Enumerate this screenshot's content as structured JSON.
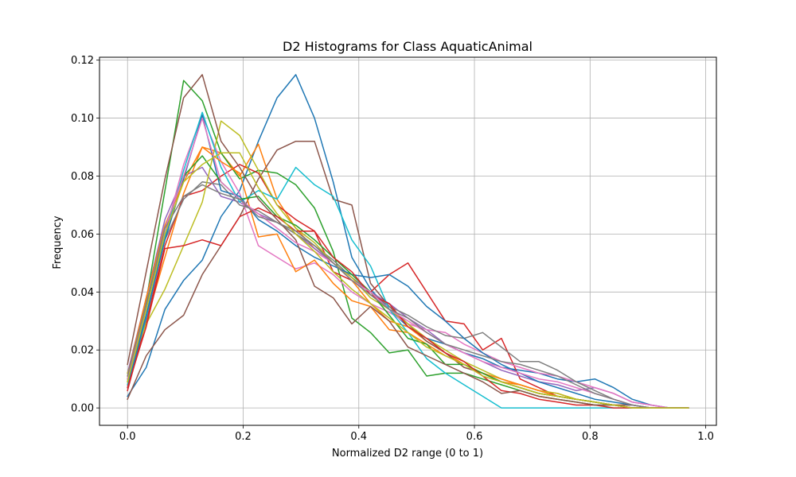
{
  "chart_data": {
    "type": "line",
    "title": "D2 Histograms for Class AquaticAnimal",
    "xlabel": "Normalized D2 range (0 to 1)",
    "ylabel": "Frequency",
    "xlim": [
      -0.0485,
      1.0185
    ],
    "ylim": [
      -0.006,
      0.121
    ],
    "xticks": [
      0.0,
      0.2,
      0.4,
      0.6,
      0.8,
      1.0
    ],
    "xtick_labels": [
      "0.0",
      "0.2",
      "0.4",
      "0.6",
      "0.8",
      "1.0"
    ],
    "yticks": [
      0.0,
      0.02,
      0.04,
      0.06,
      0.08,
      0.1,
      0.12
    ],
    "ytick_labels": [
      "0.00",
      "0.02",
      "0.04",
      "0.06",
      "0.08",
      "0.10",
      "0.12"
    ],
    "grid": true,
    "x": [
      0.0,
      0.0323,
      0.0647,
      0.097,
      0.1293,
      0.1617,
      0.194,
      0.2263,
      0.2587,
      0.291,
      0.3233,
      0.3557,
      0.388,
      0.4203,
      0.4527,
      0.485,
      0.5173,
      0.5497,
      0.582,
      0.6143,
      0.6467,
      0.679,
      0.7113,
      0.7437,
      0.776,
      0.8083,
      0.8407,
      0.873,
      0.9053,
      0.9377,
      0.97
    ],
    "series": [
      {
        "color": "#1f77b4",
        "values": [
          0.004,
          0.014,
          0.034,
          0.044,
          0.051,
          0.066,
          0.075,
          0.092,
          0.107,
          0.115,
          0.1,
          0.078,
          0.052,
          0.041,
          0.034,
          0.028,
          0.024,
          0.022,
          0.019,
          0.017,
          0.014,
          0.013,
          0.012,
          0.01,
          0.009,
          0.01,
          0.007,
          0.003,
          0.001,
          0.0,
          0.0
        ]
      },
      {
        "color": "#ff7f0e",
        "values": [
          0.008,
          0.03,
          0.052,
          0.074,
          0.09,
          0.088,
          0.08,
          0.091,
          0.072,
          0.062,
          0.055,
          0.05,
          0.044,
          0.036,
          0.03,
          0.028,
          0.023,
          0.019,
          0.015,
          0.012,
          0.009,
          0.008,
          0.006,
          0.005,
          0.003,
          0.002,
          0.001,
          0.001,
          0.0,
          0.0,
          0.0
        ]
      },
      {
        "color": "#2ca02c",
        "values": [
          0.01,
          0.037,
          0.075,
          0.113,
          0.106,
          0.088,
          0.079,
          0.082,
          0.081,
          0.077,
          0.069,
          0.054,
          0.031,
          0.026,
          0.019,
          0.02,
          0.011,
          0.012,
          0.012,
          0.01,
          0.008,
          0.006,
          0.004,
          0.003,
          0.002,
          0.001,
          0.001,
          0.0,
          0.0,
          0.0,
          0.0
        ]
      },
      {
        "color": "#d62728",
        "values": [
          0.006,
          0.03,
          0.056,
          0.073,
          0.075,
          0.08,
          0.084,
          0.081,
          0.07,
          0.065,
          0.061,
          0.047,
          0.044,
          0.04,
          0.046,
          0.05,
          0.04,
          0.03,
          0.029,
          0.02,
          0.024,
          0.01,
          0.007,
          0.004,
          0.003,
          0.002,
          0.001,
          0.0,
          0.0,
          0.0,
          0.0
        ]
      },
      {
        "color": "#9467bd",
        "values": [
          0.012,
          0.038,
          0.065,
          0.08,
          0.083,
          0.073,
          0.071,
          0.067,
          0.064,
          0.06,
          0.055,
          0.05,
          0.045,
          0.04,
          0.036,
          0.031,
          0.027,
          0.022,
          0.019,
          0.016,
          0.013,
          0.011,
          0.009,
          0.008,
          0.006,
          0.007,
          0.005,
          0.002,
          0.001,
          0.0,
          0.0
        ]
      },
      {
        "color": "#8c564b",
        "values": [
          0.003,
          0.018,
          0.027,
          0.032,
          0.046,
          0.056,
          0.066,
          0.079,
          0.089,
          0.092,
          0.092,
          0.072,
          0.07,
          0.043,
          0.035,
          0.029,
          0.023,
          0.019,
          0.014,
          0.012,
          0.009,
          0.007,
          0.005,
          0.004,
          0.003,
          0.002,
          0.001,
          0.001,
          0.0,
          0.0,
          0.0
        ]
      },
      {
        "color": "#e377c2",
        "values": [
          0.009,
          0.034,
          0.06,
          0.084,
          0.101,
          0.085,
          0.074,
          0.056,
          0.052,
          0.048,
          0.05,
          0.046,
          0.04,
          0.036,
          0.033,
          0.029,
          0.027,
          0.026,
          0.022,
          0.019,
          0.016,
          0.014,
          0.012,
          0.011,
          0.009,
          0.007,
          0.005,
          0.002,
          0.001,
          0.0,
          0.0
        ]
      },
      {
        "color": "#7f7f7f",
        "values": [
          0.01,
          0.032,
          0.058,
          0.072,
          0.078,
          0.077,
          0.07,
          0.068,
          0.064,
          0.06,
          0.056,
          0.051,
          0.045,
          0.04,
          0.035,
          0.032,
          0.028,
          0.025,
          0.024,
          0.026,
          0.021,
          0.016,
          0.016,
          0.013,
          0.009,
          0.006,
          0.003,
          0.001,
          0.0,
          0.0,
          0.0
        ]
      },
      {
        "color": "#bcbd22",
        "values": [
          0.012,
          0.029,
          0.041,
          0.056,
          0.071,
          0.099,
          0.094,
          0.082,
          0.07,
          0.062,
          0.057,
          0.05,
          0.045,
          0.038,
          0.034,
          0.029,
          0.024,
          0.02,
          0.016,
          0.013,
          0.01,
          0.008,
          0.006,
          0.005,
          0.003,
          0.002,
          0.001,
          0.0,
          0.0,
          0.0,
          0.0
        ]
      },
      {
        "color": "#17becf",
        "values": [
          0.008,
          0.031,
          0.059,
          0.082,
          0.102,
          0.083,
          0.071,
          0.075,
          0.072,
          0.083,
          0.077,
          0.073,
          0.058,
          0.049,
          0.034,
          0.026,
          0.017,
          0.012,
          0.008,
          0.004,
          0.0,
          0.0,
          0.0,
          0.0,
          0.0,
          0.0,
          0.0,
          0.0,
          0.0,
          0.0,
          0.0
        ]
      },
      {
        "color": "#1f77b4",
        "values": [
          0.007,
          0.032,
          0.058,
          0.079,
          0.101,
          0.075,
          0.073,
          0.065,
          0.061,
          0.056,
          0.052,
          0.049,
          0.046,
          0.045,
          0.046,
          0.042,
          0.035,
          0.03,
          0.024,
          0.019,
          0.015,
          0.012,
          0.009,
          0.007,
          0.005,
          0.003,
          0.002,
          0.001,
          0.0,
          0.0,
          0.0
        ]
      },
      {
        "color": "#ff7f0e",
        "values": [
          0.011,
          0.038,
          0.063,
          0.078,
          0.09,
          0.085,
          0.081,
          0.059,
          0.06,
          0.047,
          0.051,
          0.043,
          0.037,
          0.035,
          0.027,
          0.026,
          0.022,
          0.018,
          0.015,
          0.012,
          0.01,
          0.008,
          0.006,
          0.004,
          0.003,
          0.002,
          0.001,
          0.0,
          0.0,
          0.0,
          0.0
        ]
      },
      {
        "color": "#2ca02c",
        "values": [
          0.009,
          0.035,
          0.062,
          0.08,
          0.087,
          0.078,
          0.072,
          0.073,
          0.066,
          0.063,
          0.058,
          0.052,
          0.046,
          0.04,
          0.032,
          0.024,
          0.022,
          0.015,
          0.015,
          0.012,
          0.009,
          0.007,
          0.005,
          0.004,
          0.003,
          0.002,
          0.001,
          0.0,
          0.0,
          0.0,
          0.0
        ]
      },
      {
        "color": "#d62728",
        "values": [
          0.007,
          0.028,
          0.055,
          0.056,
          0.058,
          0.056,
          0.066,
          0.069,
          0.066,
          0.061,
          0.061,
          0.052,
          0.047,
          0.039,
          0.036,
          0.028,
          0.024,
          0.019,
          0.016,
          0.011,
          0.006,
          0.005,
          0.003,
          0.002,
          0.001,
          0.001,
          0.0,
          0.0,
          0.0,
          0.0,
          0.0
        ]
      },
      {
        "color": "#8c564b",
        "values": [
          0.015,
          0.047,
          0.079,
          0.107,
          0.115,
          0.092,
          0.083,
          0.072,
          0.065,
          0.058,
          0.042,
          0.038,
          0.029,
          0.035,
          0.03,
          0.021,
          0.018,
          0.015,
          0.012,
          0.009,
          0.005,
          0.006,
          0.004,
          0.003,
          0.002,
          0.001,
          0.001,
          0.0,
          0.0,
          0.0,
          0.0
        ]
      },
      {
        "color": "#e377c2",
        "values": [
          0.01,
          0.036,
          0.062,
          0.08,
          0.1,
          0.078,
          0.072,
          0.067,
          0.062,
          0.057,
          0.054,
          0.05,
          0.044,
          0.04,
          0.034,
          0.03,
          0.026,
          0.022,
          0.019,
          0.016,
          0.014,
          0.012,
          0.01,
          0.009,
          0.007,
          0.005,
          0.003,
          0.001,
          0.0,
          0.0,
          0.0
        ]
      },
      {
        "color": "#7f7f7f",
        "values": [
          0.011,
          0.036,
          0.062,
          0.073,
          0.077,
          0.074,
          0.072,
          0.066,
          0.064,
          0.061,
          0.056,
          0.05,
          0.044,
          0.039,
          0.034,
          0.031,
          0.026,
          0.022,
          0.02,
          0.018,
          0.016,
          0.015,
          0.013,
          0.011,
          0.008,
          0.005,
          0.003,
          0.001,
          0.0,
          0.0,
          0.0
        ]
      },
      {
        "color": "#bcbd22",
        "values": [
          0.009,
          0.034,
          0.06,
          0.078,
          0.084,
          0.088,
          0.088,
          0.076,
          0.067,
          0.06,
          0.054,
          0.047,
          0.041,
          0.036,
          0.031,
          0.026,
          0.021,
          0.018,
          0.015,
          0.011,
          0.009,
          0.007,
          0.005,
          0.004,
          0.003,
          0.002,
          0.001,
          0.0,
          0.0,
          0.0,
          0.0
        ]
      }
    ]
  }
}
